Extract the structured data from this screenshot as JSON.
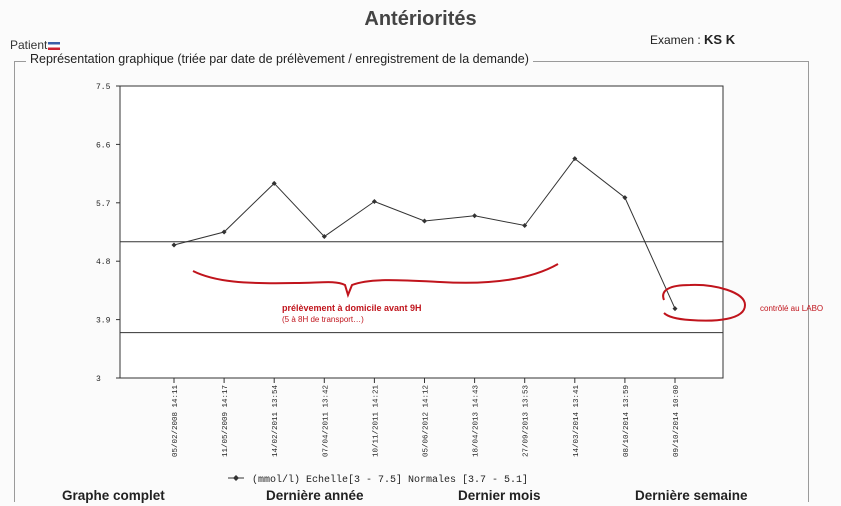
{
  "header": {
    "title": "Antériorités",
    "patient_label": "Patient",
    "examen_label": "Examen :",
    "examen_value": "KS K"
  },
  "section_caption": "Représentation graphique (triée par date de prélèvement / enregistrement de la demande)",
  "chart_data": {
    "type": "line",
    "x": [
      "05/02/2008 14:11",
      "11/05/2009 14:17",
      "14/02/2011 13:54",
      "07/04/2011 13:42",
      "10/11/2011 14:21",
      "05/06/2012 14:12",
      "18/04/2013 14:43",
      "27/09/2013 13:53",
      "14/03/2014 13:41",
      "08/10/2014 13:59",
      "09/10/2014 10:00"
    ],
    "series": [
      {
        "name": "(mmol/l) Echelle[3 - 7.5] Normales [3.7 - 5.1]",
        "values": [
          5.05,
          5.25,
          6.0,
          5.18,
          5.72,
          5.42,
          5.5,
          5.35,
          6.38,
          5.78,
          4.07
        ]
      }
    ],
    "yticks": [
      "7.5",
      "6.6",
      "5.7",
      "4.8",
      "3.9",
      "3"
    ],
    "ylim": [
      3,
      7.5
    ],
    "normal_range": [
      3.7,
      5.1
    ],
    "legend": "(mmol/l) Echelle[3 - 7.5] Normales [3.7 - 5.1]",
    "annotations": {
      "main": "prélèvement à domicile avant 9H",
      "sub": "(5 à 8H de transport…)",
      "right": "contrôlé au LABO"
    },
    "annotation_color": "#c0141c",
    "line_color": "#333333"
  },
  "tabs": [
    "Graphe complet",
    "Dernière année",
    "Dernier mois",
    "Dernière semaine"
  ]
}
